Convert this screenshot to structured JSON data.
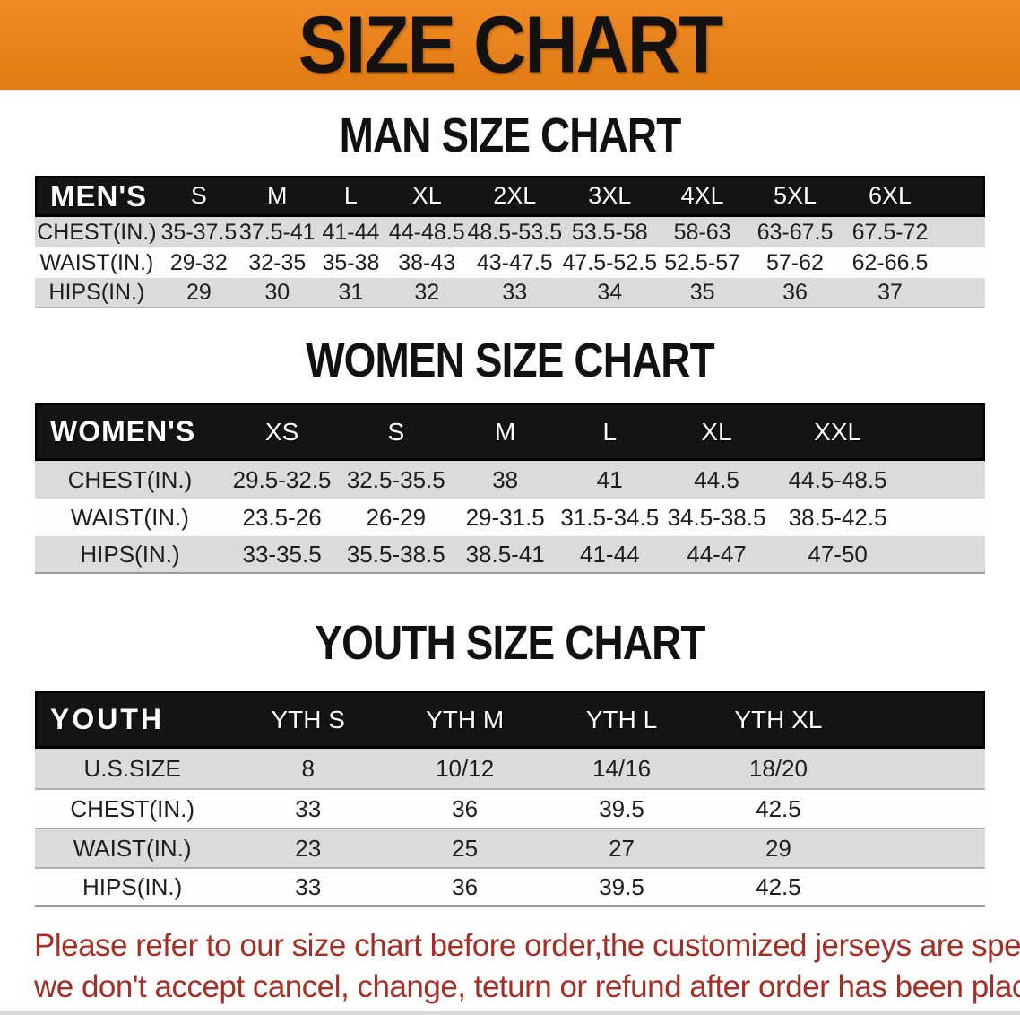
{
  "banner": {
    "title": "SIZE CHART",
    "bg_color": "#E8821C",
    "title_color": "#141210"
  },
  "colors": {
    "table_header_bg": "#141414",
    "table_header_text": "#FFFFFF",
    "row_gray": "#DBDBDB",
    "row_white": "#FEFEFE",
    "disclaimer_red": "#A62D24"
  },
  "sections": [
    {
      "heading": "MAN SIZE CHART",
      "table": {
        "label": "MEN'S",
        "columns": [
          "S",
          "M",
          "L",
          "XL",
          "2XL",
          "3XL",
          "4XL",
          "5XL",
          "6XL"
        ],
        "rows": [
          {
            "label": "CHEST(IN.)",
            "values": [
              "35-37.5",
              "37.5-41",
              "41-44",
              "44-48.5",
              "48.5-53.5",
              "53.5-58",
              "58-63",
              "63-67.5",
              "67.5-72"
            ]
          },
          {
            "label": "WAIST(IN.)",
            "values": [
              "29-32",
              "32-35",
              "35-38",
              "38-43",
              "43-47.5",
              "47.5-52.5",
              "52.5-57",
              "57-62",
              "62-66.5"
            ]
          },
          {
            "label": "HIPS(IN.)",
            "values": [
              "29",
              "30",
              "31",
              "32",
              "33",
              "34",
              "35",
              "36",
              "37"
            ]
          }
        ]
      }
    },
    {
      "heading": "WOMEN SIZE CHART",
      "table": {
        "label": "WOMEN'S",
        "columns": [
          "XS",
          "S",
          "M",
          "L",
          "XL",
          "XXL"
        ],
        "rows": [
          {
            "label": "CHEST(IN.)",
            "values": [
              "29.5-32.5",
              "32.5-35.5",
              "38",
              "41",
              "44.5",
              "44.5-48.5"
            ]
          },
          {
            "label": "WAIST(IN.)",
            "values": [
              "23.5-26",
              "26-29",
              "29-31.5",
              "31.5-34.5",
              "34.5-38.5",
              "38.5-42.5"
            ]
          },
          {
            "label": "HIPS(IN.)",
            "values": [
              "33-35.5",
              "35.5-38.5",
              "38.5-41",
              "41-44",
              "44-47",
              "47-50"
            ]
          }
        ]
      }
    },
    {
      "heading": "YOUTH SIZE CHART",
      "table": {
        "label": "YOUTH",
        "columns": [
          "YTH S",
          "YTH M",
          "YTH L",
          "YTH XL"
        ],
        "rows": [
          {
            "label": "U.S.SIZE",
            "values": [
              "8",
              "10/12",
              "14/16",
              "18/20"
            ]
          },
          {
            "label": "CHEST(IN.)",
            "values": [
              "33",
              "36",
              "39.5",
              "42.5"
            ]
          },
          {
            "label": "WAIST(IN.)",
            "values": [
              "23",
              "25",
              "27",
              "29"
            ]
          },
          {
            "label": "HIPS(IN.)",
            "values": [
              "33",
              "36",
              "39.5",
              "42.5"
            ]
          }
        ]
      }
    }
  ],
  "disclaimer": {
    "line1": "Please refer to our size chart before order,the customized jerseys are special products,",
    "line2": "we don't accept cancel, change, teturn or refund after order has been placed!"
  }
}
